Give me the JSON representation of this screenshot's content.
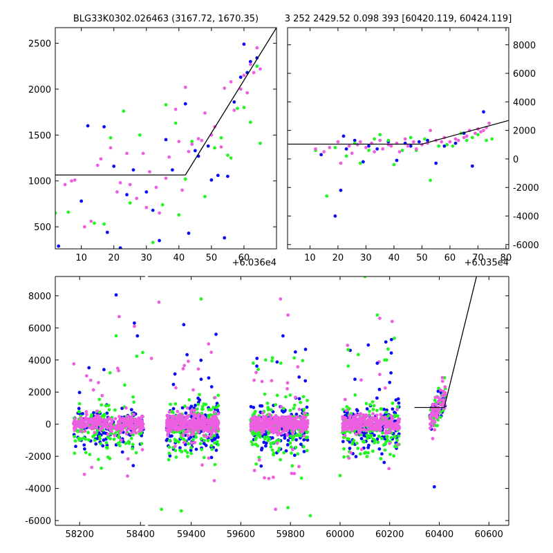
{
  "titles": {
    "left": "BLG33K0302.026463 (3167.72, 1670.35)",
    "right": "3 252 2429.52 0.098 393 [60420.119, 60424.119]"
  },
  "colors": {
    "blue": "#0a0af5",
    "green": "#22f522",
    "magenta": "#ee5ee0",
    "line": "#000000"
  },
  "chart_data": [
    {
      "type": "scatter",
      "title": "BLG33K0302.026463 (3167.72, 1670.35)",
      "x_offset_label": "+6.036e4",
      "xlim": [
        2,
        70
      ],
      "ylim": [
        260,
        2670
      ],
      "xticks": [
        10,
        20,
        30,
        40,
        50,
        60
      ],
      "yticks": [
        500,
        1000,
        1500,
        2000,
        2500
      ],
      "model_line": {
        "x": [
          2,
          42,
          70
        ],
        "y": [
          1065,
          1065,
          2670
        ]
      },
      "series": [
        {
          "color": "blue",
          "x": [
            3,
            10,
            12,
            17,
            18,
            20,
            22,
            24,
            26,
            30,
            32,
            34,
            36,
            38,
            42,
            43,
            45,
            46,
            49,
            50,
            52,
            54,
            55,
            57,
            59,
            60,
            61,
            62,
            64
          ],
          "y": [
            290,
            780,
            1600,
            1590,
            440,
            1160,
            270,
            850,
            1120,
            880,
            680,
            350,
            1450,
            1120,
            1840,
            430,
            1330,
            1270,
            1380,
            1010,
            1060,
            380,
            1050,
            1860,
            2130,
            2490,
            2180,
            2300,
            2340
          ]
        },
        {
          "color": "green",
          "x": [
            2,
            6,
            14,
            17,
            19,
            23,
            25,
            28,
            32,
            35,
            36,
            39,
            40,
            42,
            44,
            48,
            51,
            53,
            55,
            56,
            58,
            60,
            62,
            64,
            65
          ],
          "y": [
            650,
            660,
            540,
            530,
            1470,
            1760,
            760,
            1500,
            330,
            740,
            1830,
            1630,
            630,
            1020,
            1430,
            830,
            1360,
            1470,
            1280,
            1250,
            1790,
            1800,
            1640,
            2250,
            1410
          ]
        },
        {
          "color": "magenta",
          "x": [
            5,
            7,
            8,
            11,
            13,
            15,
            16,
            19,
            21,
            22,
            24,
            25,
            27,
            29,
            30,
            31,
            33,
            34,
            36,
            37,
            39,
            40,
            41,
            42,
            43,
            44,
            46,
            47,
            48,
            50,
            51,
            53,
            54,
            56,
            57,
            59,
            60,
            61,
            62,
            63,
            64,
            65
          ],
          "y": [
            960,
            1000,
            1010,
            500,
            560,
            1170,
            1240,
            1360,
            880,
            980,
            1300,
            960,
            810,
            1300,
            710,
            1100,
            930,
            650,
            1030,
            1260,
            1780,
            1430,
            900,
            2020,
            1320,
            1400,
            1460,
            1440,
            1740,
            1500,
            1590,
            1370,
            2010,
            2080,
            1770,
            2000,
            2150,
            1960,
            2270,
            2180,
            2450,
            2220
          ]
        }
      ]
    },
    {
      "type": "scatter",
      "title": "3 252 2429.52 0.098 393 [60420.119, 60424.119]",
      "x_offset_label": "+6.035e4",
      "xlim": [
        2,
        81
      ],
      "ylim": [
        -6300,
        9200
      ],
      "xticks": [
        10,
        20,
        30,
        40,
        50,
        60,
        70,
        80
      ],
      "yticks": [
        -6000,
        -4000,
        -2000,
        0,
        2000,
        4000,
        6000,
        8000
      ],
      "model_line": {
        "x": [
          2,
          50,
          81
        ],
        "y": [
          1040,
          1040,
          2700
        ]
      },
      "series": [
        {
          "color": "blue",
          "x": [
            14,
            19,
            21,
            22,
            23,
            26,
            29,
            31,
            34,
            38,
            41,
            44,
            46,
            49,
            52,
            55,
            58,
            62,
            65,
            68,
            72
          ],
          "y": [
            300,
            -4000,
            -2200,
            1600,
            700,
            1300,
            -200,
            900,
            700,
            1200,
            -100,
            1100,
            900,
            1200,
            1300,
            -300,
            900,
            1100,
            1800,
            -500,
            3300
          ]
        },
        {
          "color": "green",
          "x": [
            12,
            16,
            19,
            23,
            26,
            28,
            31,
            33,
            35,
            38,
            40,
            43,
            46,
            48,
            51,
            53,
            56,
            59,
            61,
            64,
            66,
            68,
            70,
            73,
            75
          ],
          "y": [
            600,
            -2600,
            800,
            200,
            1100,
            -300,
            600,
            1400,
            1700,
            1300,
            -400,
            600,
            1500,
            600,
            1400,
            -1500,
            900,
            1000,
            900,
            1800,
            1300,
            1500,
            1700,
            1300,
            1400
          ]
        },
        {
          "color": "magenta",
          "x": [
            12,
            15,
            17,
            20,
            21,
            24,
            25,
            27,
            28,
            30,
            32,
            33,
            35,
            36,
            38,
            39,
            41,
            42,
            44,
            45,
            47,
            48,
            50,
            52,
            53,
            55,
            57,
            58,
            60,
            62,
            63,
            65,
            66,
            67,
            69,
            70,
            71,
            72,
            73,
            74
          ],
          "y": [
            700,
            500,
            800,
            1200,
            -300,
            900,
            400,
            1000,
            1200,
            800,
            1100,
            500,
            1300,
            700,
            1000,
            900,
            1100,
            500,
            1400,
            900,
            1200,
            700,
            1000,
            1100,
            2000,
            1300,
            1200,
            1500,
            1200,
            1400,
            1300,
            1500,
            1600,
            2000,
            1800,
            2100,
            1900,
            2000,
            2200,
            2500
          ]
        }
      ]
    },
    {
      "type": "scatter",
      "title": "",
      "xlim": [
        58120,
        60680
      ],
      "ylim": [
        -6300,
        9200
      ],
      "x_break": [
        58420,
        59220
      ],
      "xticks": [
        58200,
        58400,
        59400,
        59600,
        59800,
        60000,
        60200,
        60400,
        60600
      ],
      "yticks": [
        -6000,
        -4000,
        -2000,
        0,
        2000,
        4000,
        6000,
        8000
      ],
      "model_line": {
        "x": [
          60300,
          60400,
          60420,
          60550
        ],
        "y": [
          1040,
          1040,
          1040,
          9200
        ]
      },
      "clusters": [
        {
          "x_range": [
            58180,
            58410
          ],
          "n": 260,
          "core_sd": 450,
          "spread": [
            -5700,
            8000
          ]
        },
        {
          "x_range": [
            59300,
            59510
          ],
          "n": 320,
          "core_sd": 550,
          "spread": [
            -5900,
            7800
          ]
        },
        {
          "x_range": [
            59640,
            59870
          ],
          "n": 320,
          "core_sd": 500,
          "spread": [
            -5800,
            7800
          ]
        },
        {
          "x_range": [
            60010,
            60240
          ],
          "n": 300,
          "core_sd": 500,
          "spread": [
            -5000,
            9100
          ]
        },
        {
          "x_range": [
            60360,
            60425
          ],
          "n": 60,
          "core_sd": 500,
          "spread": [
            -3900,
            3400
          ]
        }
      ],
      "series": [
        {
          "color": "blue",
          "outliers_x": [
            58320,
            58380,
            58390,
            58280,
            59370,
            59500,
            59440,
            59770,
            59820,
            59860,
            60060,
            60150,
            60200,
            60380
          ],
          "outliers_y": [
            8050,
            6300,
            5500,
            3400,
            6200,
            5600,
            2800,
            5500,
            4500,
            2700,
            2800,
            3800,
            2600,
            -3900
          ]
        },
        {
          "color": "green",
          "outliers_x": [
            58320,
            58300,
            59440,
            59360,
            59280,
            59700,
            59880,
            59790,
            60100,
            60150,
            60180,
            60000
          ],
          "outliers_y": [
            5500,
            3200,
            7800,
            -5400,
            -5300,
            4000,
            -5700,
            -5200,
            9200,
            6800,
            4000,
            -3200
          ]
        },
        {
          "color": "magenta",
          "outliers_x": [
            58330,
            58380,
            59240,
            59270,
            59470,
            59760,
            59790,
            59740,
            60160,
            60210,
            60160
          ],
          "outliers_y": [
            6700,
            6100,
            4100,
            7600,
            5000,
            7800,
            6800,
            -5300,
            6600,
            6400,
            3100
          ]
        }
      ]
    }
  ]
}
